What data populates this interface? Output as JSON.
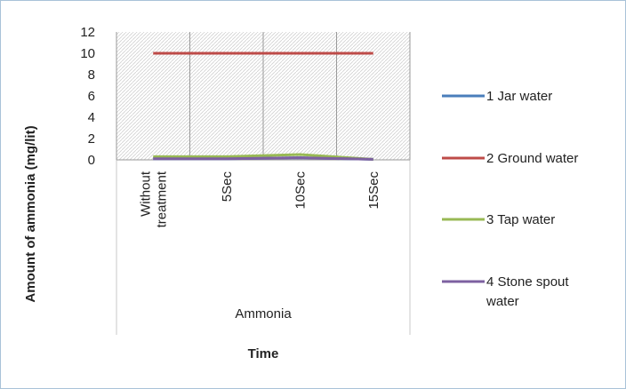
{
  "chart_data": {
    "type": "line",
    "categories": [
      "Without treatment",
      "5Sec",
      "10Sec",
      "15Sec"
    ],
    "category_lines": [
      [
        "Without",
        "treatment"
      ],
      [
        "5Sec"
      ],
      [
        "10Sec"
      ],
      [
        "15Sec"
      ]
    ],
    "group_label": "Ammonia",
    "xlabel": "Time",
    "ylabel": "Amount of ammonia (mg/lit)",
    "ylim": [
      0,
      12
    ],
    "yticks": [
      0,
      2,
      4,
      6,
      8,
      10,
      12
    ],
    "legend_position": "right",
    "series": [
      {
        "name": "1 Jar water",
        "values": [
          0.1,
          0.1,
          0.2,
          0.05
        ],
        "color": "#4a7ebb"
      },
      {
        "name": "2 Ground water",
        "values": [
          10,
          10,
          10,
          10
        ],
        "color": "#be4b48"
      },
      {
        "name": "3 Tap water",
        "values": [
          0.3,
          0.3,
          0.5,
          0.05
        ],
        "color": "#98b954"
      },
      {
        "name": "4 Stone spout water",
        "values": [
          0.1,
          0.1,
          0.2,
          0.05
        ],
        "color": "#7d60a0",
        "name_lines": [
          "4 Stone spout",
          "water"
        ]
      }
    ]
  }
}
